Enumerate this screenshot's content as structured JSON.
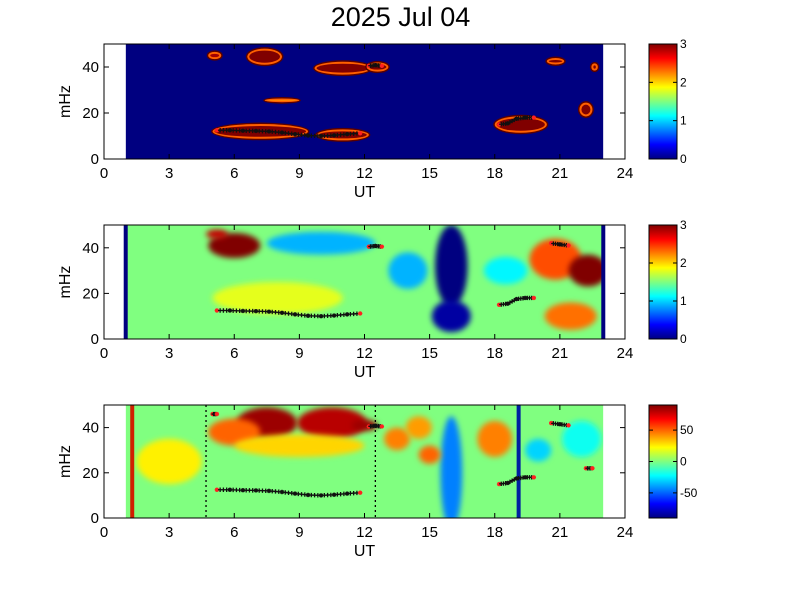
{
  "title": "2025 Jul 04",
  "chart_data": [
    {
      "type": "heatmap",
      "panel": "top",
      "xlabel": "UT",
      "ylabel": "mHz",
      "xlim": [
        0,
        24
      ],
      "ylim": [
        0,
        50
      ],
      "xticks": [
        0,
        3,
        6,
        9,
        12,
        15,
        18,
        21,
        24
      ],
      "yticks": [
        0,
        20,
        40
      ],
      "clim": [
        0,
        3
      ],
      "colorbar_ticks": [
        0,
        1,
        2,
        3
      ],
      "data_extent_x": [
        1,
        23
      ],
      "background_value": 0,
      "blobs": [
        {
          "x": 7.2,
          "y": 12,
          "rx": 2.2,
          "ry": 3.2,
          "value": 3
        },
        {
          "x": 11.0,
          "y": 10.5,
          "rx": 1.2,
          "ry": 2.4,
          "value": 3
        },
        {
          "x": 7.4,
          "y": 44.5,
          "rx": 0.8,
          "ry": 3.5,
          "value": 3
        },
        {
          "x": 5.1,
          "y": 45,
          "rx": 0.3,
          "ry": 1.6,
          "value": 2.9
        },
        {
          "x": 11.0,
          "y": 39.5,
          "rx": 1.3,
          "ry": 2.8,
          "value": 3
        },
        {
          "x": 12.6,
          "y": 40,
          "rx": 0.5,
          "ry": 2.0,
          "value": 3
        },
        {
          "x": 8.2,
          "y": 25.5,
          "rx": 0.8,
          "ry": 0.8,
          "value": 2.2
        },
        {
          "x": 19.2,
          "y": 15,
          "rx": 1.2,
          "ry": 3.6,
          "value": 3
        },
        {
          "x": 20.8,
          "y": 42.5,
          "rx": 0.4,
          "ry": 1.4,
          "value": 3
        },
        {
          "x": 22.2,
          "y": 21.5,
          "rx": 0.3,
          "ry": 3.0,
          "value": 3
        },
        {
          "x": 22.6,
          "y": 40,
          "rx": 0.15,
          "ry": 1.6,
          "value": 3
        }
      ],
      "markers": [
        {
          "x": [
            5.2,
            5.8,
            6.4,
            7.0,
            7.6,
            8.2,
            8.8,
            9.4,
            10.0,
            10.6,
            11.2,
            11.8
          ],
          "y": [
            12.5,
            12.5,
            12.3,
            12.2,
            12.0,
            11.5,
            10.8,
            10.2,
            10.0,
            10.3,
            10.8,
            11.2
          ]
        },
        {
          "x": [
            12.2,
            12.5,
            12.8
          ],
          "y": [
            40.5,
            40.8,
            40.5
          ]
        },
        {
          "x": [
            18.2,
            18.6,
            19.0,
            19.4,
            19.8
          ],
          "y": [
            15.0,
            15.5,
            17.5,
            18.0,
            18.0
          ]
        }
      ]
    },
    {
      "type": "heatmap",
      "panel": "middle",
      "xlabel": "UT",
      "ylabel": "mHz",
      "xlim": [
        0,
        24
      ],
      "ylim": [
        0,
        50
      ],
      "xticks": [
        0,
        3,
        6,
        9,
        12,
        15,
        18,
        21,
        24
      ],
      "yticks": [
        0,
        20,
        40
      ],
      "clim": [
        0,
        3
      ],
      "colorbar_ticks": [
        0,
        1,
        2,
        3
      ],
      "data_extent_x": [
        1,
        23
      ],
      "background_value": 1.5,
      "blobs": [
        {
          "x": 6.0,
          "y": 41,
          "rx": 1.2,
          "ry": 5.5,
          "value": 3
        },
        {
          "x": 5.2,
          "y": 46,
          "rx": 0.5,
          "ry": 2.0,
          "value": 2.8
        },
        {
          "x": 16.0,
          "y": 32,
          "rx": 0.75,
          "ry": 18,
          "value": 0
        },
        {
          "x": 16.0,
          "y": 10,
          "rx": 0.9,
          "ry": 7,
          "value": 0.1
        },
        {
          "x": 20.8,
          "y": 35,
          "rx": 1.2,
          "ry": 9,
          "value": 2.4
        },
        {
          "x": 22.3,
          "y": 30,
          "rx": 0.9,
          "ry": 7,
          "value": 3
        },
        {
          "x": 21.5,
          "y": 10,
          "rx": 1.2,
          "ry": 6,
          "value": 2.3
        },
        {
          "x": 10.0,
          "y": 42,
          "rx": 2.5,
          "ry": 5,
          "value": 0.9
        },
        {
          "x": 14.0,
          "y": 30,
          "rx": 0.9,
          "ry": 8,
          "value": 0.9
        },
        {
          "x": 18.5,
          "y": 30,
          "rx": 1.0,
          "ry": 6,
          "value": 1.1
        },
        {
          "x": 8.0,
          "y": 18,
          "rx": 3.0,
          "ry": 7,
          "value": 1.8
        }
      ],
      "markers": [
        {
          "x": [
            5.2,
            5.8,
            6.4,
            7.0,
            7.6,
            8.2,
            8.8,
            9.4,
            10.0,
            10.6,
            11.2,
            11.8
          ],
          "y": [
            12.5,
            12.5,
            12.3,
            12.2,
            12.0,
            11.5,
            10.8,
            10.2,
            10.0,
            10.3,
            10.8,
            11.2
          ]
        },
        {
          "x": [
            12.2,
            12.5,
            12.8
          ],
          "y": [
            40.5,
            40.8,
            40.5
          ]
        },
        {
          "x": [
            18.2,
            18.6,
            19.0,
            19.4,
            19.8
          ],
          "y": [
            15.0,
            15.5,
            17.5,
            18.0,
            18.0
          ]
        },
        {
          "x": [
            20.6,
            21.0,
            21.4
          ],
          "y": [
            42.0,
            41.5,
            41.0
          ]
        }
      ],
      "vlines": [
        {
          "x": 1.0,
          "color": "#000080"
        },
        {
          "x": 23.0,
          "color": "#000080"
        }
      ]
    },
    {
      "type": "heatmap",
      "panel": "bottom",
      "xlabel": "UT",
      "ylabel": "mHz",
      "xlim": [
        0,
        24
      ],
      "ylim": [
        0,
        50
      ],
      "xticks": [
        0,
        3,
        6,
        9,
        12,
        15,
        18,
        21,
        24
      ],
      "yticks": [
        0,
        20,
        40
      ],
      "clim": [
        -90,
        90
      ],
      "colorbar_ticks": [
        50,
        0,
        -50
      ],
      "data_extent_x": [
        1,
        23
      ],
      "background_value": 0,
      "blobs": [
        {
          "x": 7.5,
          "y": 42,
          "rx": 1.4,
          "ry": 7,
          "value": 85
        },
        {
          "x": 10.5,
          "y": 42,
          "rx": 1.6,
          "ry": 7,
          "value": 80
        },
        {
          "x": 12.0,
          "y": 41,
          "rx": 0.6,
          "ry": 2.5,
          "value": 85
        },
        {
          "x": 6.0,
          "y": 38,
          "rx": 1.2,
          "ry": 6,
          "value": 50
        },
        {
          "x": 9.0,
          "y": 32,
          "rx": 3.0,
          "ry": 5,
          "value": 30
        },
        {
          "x": 13.5,
          "y": 35,
          "rx": 0.6,
          "ry": 5,
          "value": 45
        },
        {
          "x": 14.5,
          "y": 40,
          "rx": 0.6,
          "ry": 5,
          "value": 40
        },
        {
          "x": 16.0,
          "y": 20,
          "rx": 0.5,
          "ry": 25,
          "value": -45
        },
        {
          "x": 15.0,
          "y": 28,
          "rx": 0.5,
          "ry": 4,
          "value": 50
        },
        {
          "x": 18.0,
          "y": 35,
          "rx": 0.8,
          "ry": 8,
          "value": 45
        },
        {
          "x": 20.0,
          "y": 30,
          "rx": 0.6,
          "ry": 5,
          "value": -30
        },
        {
          "x": 3.0,
          "y": 25,
          "rx": 1.5,
          "ry": 10,
          "value": 25
        },
        {
          "x": 22.0,
          "y": 35,
          "rx": 0.9,
          "ry": 8,
          "value": -20
        }
      ],
      "markers": [
        {
          "x": [
            5.2,
            5.8,
            6.4,
            7.0,
            7.6,
            8.2,
            8.8,
            9.4,
            10.0,
            10.6,
            11.2,
            11.8
          ],
          "y": [
            12.5,
            12.5,
            12.3,
            12.2,
            12.0,
            11.5,
            10.8,
            10.2,
            10.0,
            10.3,
            10.8,
            11.2
          ]
        },
        {
          "x": [
            12.2,
            12.5,
            12.8
          ],
          "y": [
            40.5,
            40.8,
            40.5
          ]
        },
        {
          "x": [
            18.2,
            18.6,
            19.0,
            19.4,
            19.8
          ],
          "y": [
            15.0,
            15.5,
            17.5,
            18.0,
            18.0
          ]
        },
        {
          "x": [
            20.6,
            21.0,
            21.4
          ],
          "y": [
            42.0,
            41.5,
            41.0
          ]
        },
        {
          "x": [
            22.2,
            22.5
          ],
          "y": [
            22.0,
            22.0
          ]
        },
        {
          "x": [
            5.0,
            5.2
          ],
          "y": [
            46.0,
            46.0
          ]
        }
      ],
      "vlines": [
        {
          "x": 1.3,
          "color": "#d02000"
        },
        {
          "x": 19.1,
          "color": "#0020a0"
        }
      ],
      "dotted_vlines": [
        4.7,
        12.5
      ]
    }
  ]
}
